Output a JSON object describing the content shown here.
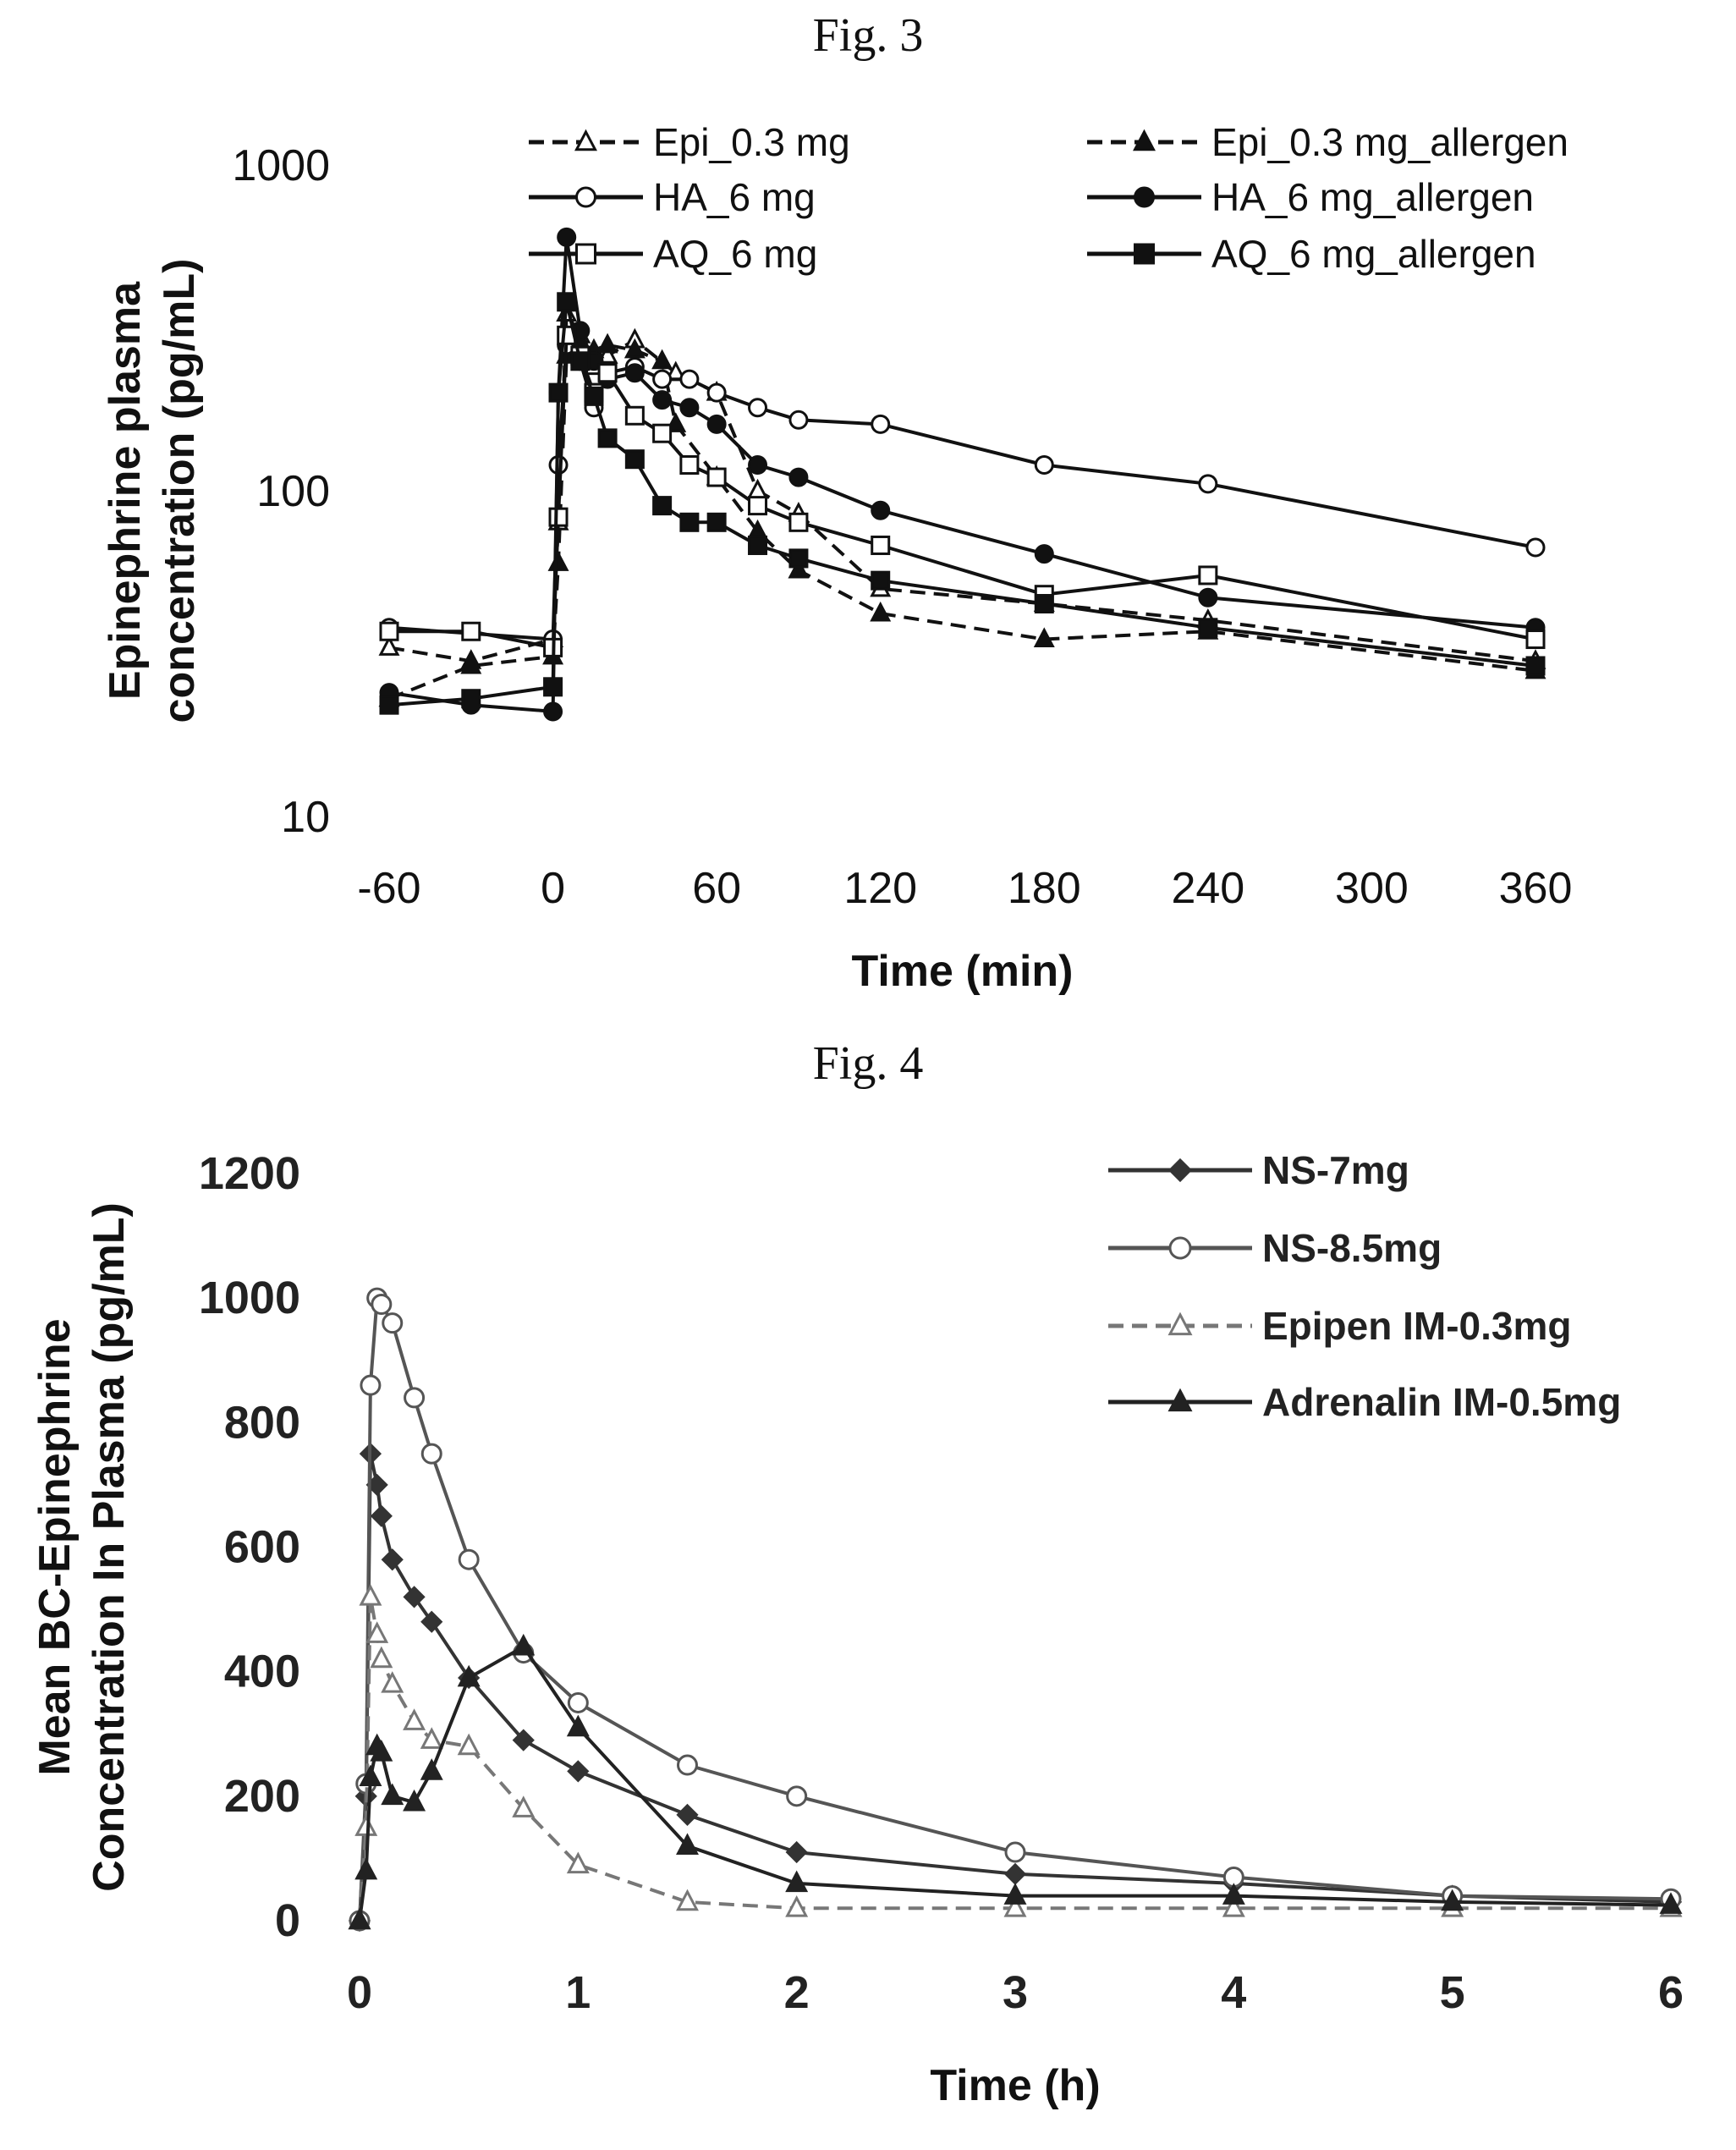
{
  "figures": {
    "fig3_title": "Fig. 3",
    "fig4_title": "Fig. 4"
  },
  "chart_data": [
    {
      "type": "line",
      "xlabel": "Time (min)",
      "ylabel_lines": [
        "Epinephrine plasma",
        "concentration (pg/mL)"
      ],
      "yscale": "log",
      "ylim": [
        10,
        1000
      ],
      "xlim": [
        -60,
        360
      ],
      "xticks": [
        "-60",
        "0",
        "60",
        "120",
        "180",
        "240",
        "300",
        "360"
      ],
      "yticks": [
        "10",
        "100",
        "1000"
      ],
      "legend_position": "top",
      "series": [
        {
          "name": "Epi_0.3 mg",
          "dash": true,
          "marker": "triangle",
          "filled": false,
          "x": [
            -60,
            -30,
            0,
            2,
            5,
            10,
            15,
            20,
            30,
            45,
            60,
            75,
            90,
            120,
            180,
            240,
            360
          ],
          "y": [
            33,
            30,
            35,
            80,
            350,
            300,
            240,
            260,
            290,
            230,
            200,
            100,
            85,
            50,
            45,
            40,
            30
          ]
        },
        {
          "name": "Epi_0.3 mg_allergen",
          "dash": true,
          "marker": "triangle",
          "filled": true,
          "x": [
            -60,
            -30,
            0,
            2,
            5,
            10,
            15,
            20,
            30,
            40,
            45,
            60,
            75,
            90,
            120,
            180,
            240,
            360
          ],
          "y": [
            23,
            29,
            31,
            60,
            260,
            280,
            270,
            280,
            270,
            250,
            160,
            110,
            75,
            57,
            42,
            35,
            37,
            28
          ]
        },
        {
          "name": "HA_6 mg",
          "dash": false,
          "marker": "circle",
          "filled": false,
          "x": [
            -60,
            0,
            2,
            5,
            10,
            15,
            20,
            30,
            40,
            50,
            60,
            75,
            90,
            120,
            180,
            240,
            360
          ],
          "y": [
            38,
            35,
            120,
            280,
            250,
            180,
            230,
            240,
            220,
            220,
            200,
            180,
            165,
            160,
            120,
            105,
            67
          ]
        },
        {
          "name": "HA_6 mg_allergen",
          "dash": false,
          "marker": "circle",
          "filled": true,
          "x": [
            -60,
            -30,
            0,
            2,
            5,
            10,
            15,
            20,
            30,
            40,
            50,
            60,
            75,
            90,
            120,
            180,
            240,
            360
          ],
          "y": [
            24,
            22,
            21,
            200,
            600,
            310,
            250,
            220,
            230,
            190,
            180,
            160,
            120,
            110,
            87,
            64,
            47,
            38
          ]
        },
        {
          "name": "AQ_6 mg",
          "dash": false,
          "marker": "square",
          "filled": false,
          "x": [
            -60,
            -30,
            0,
            2,
            5,
            10,
            15,
            20,
            30,
            40,
            50,
            60,
            75,
            90,
            120,
            180,
            240,
            360
          ],
          "y": [
            37,
            37,
            33,
            83,
            300,
            260,
            200,
            230,
            170,
            150,
            120,
            110,
            90,
            80,
            68,
            48,
            55,
            35
          ]
        },
        {
          "name": "AQ_6 mg_allergen",
          "dash": false,
          "marker": "square",
          "filled": true,
          "x": [
            -60,
            -30,
            0,
            2,
            5,
            10,
            15,
            20,
            30,
            40,
            50,
            60,
            75,
            90,
            120,
            180,
            240,
            360
          ],
          "y": [
            22,
            23,
            25,
            200,
            380,
            250,
            195,
            145,
            125,
            90,
            80,
            80,
            68,
            62,
            53,
            45,
            38,
            29
          ]
        }
      ]
    },
    {
      "type": "line",
      "xlabel": "Time (h)",
      "ylabel_lines": [
        "Mean BC-Epinephrine",
        "Concentration In Plasma (pg/mL)"
      ],
      "ylim": [
        0,
        1200
      ],
      "xlim": [
        0,
        6
      ],
      "xticks": [
        "0",
        "1",
        "2",
        "3",
        "4",
        "5",
        "6"
      ],
      "yticks": [
        "0",
        "200",
        "400",
        "600",
        "800",
        "1000",
        "1200"
      ],
      "legend_position": "top-right",
      "series": [
        {
          "name": "NS-7mg",
          "dash": false,
          "marker": "diamond",
          "filled": true,
          "x": [
            0,
            0.03,
            0.05,
            0.08,
            0.1,
            0.15,
            0.25,
            0.33,
            0.5,
            0.75,
            1,
            1.5,
            2,
            3,
            4,
            5,
            6
          ],
          "y": [
            0,
            200,
            750,
            700,
            650,
            580,
            520,
            480,
            390,
            290,
            240,
            170,
            110,
            75,
            60,
            40,
            30
          ]
        },
        {
          "name": "NS-8.5mg",
          "dash": false,
          "marker": "circle",
          "filled": false,
          "x": [
            0,
            0.03,
            0.05,
            0.08,
            0.1,
            0.15,
            0.25,
            0.33,
            0.5,
            0.75,
            1,
            1.5,
            2,
            3,
            4,
            5,
            6
          ],
          "y": [
            0,
            220,
            860,
            1000,
            990,
            960,
            840,
            750,
            580,
            430,
            350,
            250,
            200,
            110,
            70,
            40,
            35
          ]
        },
        {
          "name": "Epipen IM-0.3mg",
          "dash": true,
          "marker": "triangle",
          "filled": false,
          "x": [
            0,
            0.03,
            0.05,
            0.08,
            0.1,
            0.15,
            0.25,
            0.33,
            0.5,
            0.75,
            1,
            1.5,
            2,
            3,
            4,
            5,
            6
          ],
          "y": [
            0,
            150,
            520,
            460,
            420,
            380,
            320,
            290,
            280,
            180,
            90,
            30,
            20,
            20,
            20,
            20,
            20
          ]
        },
        {
          "name": "Adrenalin IM-0.5mg",
          "dash": false,
          "marker": "triangle",
          "filled": true,
          "x": [
            0,
            0.03,
            0.05,
            0.08,
            0.1,
            0.15,
            0.25,
            0.33,
            0.5,
            0.75,
            1,
            1.5,
            2,
            3,
            4,
            5,
            6
          ],
          "y": [
            0,
            80,
            230,
            280,
            270,
            200,
            190,
            240,
            390,
            440,
            310,
            120,
            60,
            40,
            40,
            30,
            25
          ]
        }
      ]
    }
  ]
}
